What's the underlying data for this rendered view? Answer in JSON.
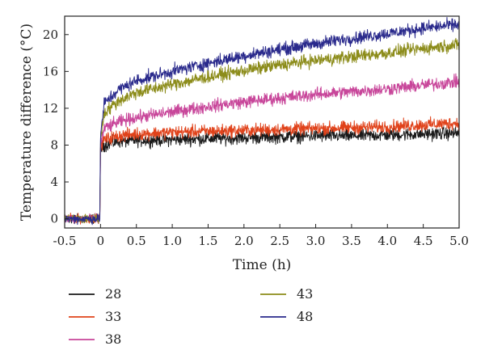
{
  "chart_data": {
    "type": "line",
    "title": "",
    "xlabel": "Time (h)",
    "ylabel": "Temperature difference (°C)",
    "xlim": [
      -0.5,
      5.0
    ],
    "ylim": [
      -1.0,
      22.0
    ],
    "x_ticks": [
      "-0.5",
      "0",
      "0.5",
      "1.0",
      "1.5",
      "2.0",
      "2.5",
      "3.0",
      "3.5",
      "4.0",
      "4.5",
      "5.0"
    ],
    "y_ticks": [
      "0",
      "4",
      "8",
      "12",
      "16",
      "20"
    ],
    "grid": false,
    "legend_position": "bottom",
    "noise": "high-frequency fluctuation of roughly ±0.6 °C around each trend",
    "series": [
      {
        "name": "28",
        "color": "#1a1a1a",
        "x": [
          -0.5,
          -0.01,
          0.0,
          0.05,
          0.25,
          0.5,
          1.0,
          1.5,
          2.0,
          2.5,
          3.0,
          3.5,
          4.0,
          4.5,
          5.0
        ],
        "y": [
          0.0,
          0.0,
          7.5,
          8.0,
          8.4,
          8.5,
          8.6,
          8.7,
          8.8,
          8.9,
          9.0,
          9.0,
          9.1,
          9.2,
          9.3
        ]
      },
      {
        "name": "33",
        "color": "#e0421a",
        "x": [
          -0.5,
          -0.01,
          0.0,
          0.05,
          0.25,
          0.5,
          1.0,
          1.5,
          2.0,
          2.5,
          3.0,
          3.5,
          4.0,
          4.5,
          5.0
        ],
        "y": [
          0.0,
          0.0,
          7.8,
          8.6,
          9.0,
          9.2,
          9.4,
          9.5,
          9.6,
          9.7,
          9.8,
          9.9,
          10.0,
          10.2,
          10.4
        ]
      },
      {
        "name": "38",
        "color": "#c8469a",
        "x": [
          -0.5,
          -0.01,
          0.0,
          0.05,
          0.25,
          0.5,
          1.0,
          1.5,
          2.0,
          2.5,
          3.0,
          3.5,
          4.0,
          4.5,
          5.0
        ],
        "y": [
          0.0,
          0.0,
          8.0,
          9.8,
          10.5,
          11.0,
          11.6,
          12.2,
          12.7,
          13.1,
          13.5,
          13.8,
          14.1,
          14.5,
          14.9
        ]
      },
      {
        "name": "43",
        "color": "#8c8c1a",
        "x": [
          -0.5,
          -0.01,
          0.0,
          0.05,
          0.25,
          0.5,
          1.0,
          1.5,
          2.0,
          2.5,
          3.0,
          3.5,
          4.0,
          4.5,
          5.0
        ],
        "y": [
          0.0,
          0.0,
          8.5,
          11.5,
          12.8,
          13.7,
          14.6,
          15.4,
          16.1,
          16.7,
          17.2,
          17.6,
          18.0,
          18.5,
          18.9
        ]
      },
      {
        "name": "48",
        "color": "#2a2a8c",
        "x": [
          -0.5,
          -0.01,
          0.0,
          0.05,
          0.25,
          0.5,
          1.0,
          1.5,
          2.0,
          2.5,
          3.0,
          3.5,
          4.0,
          4.5,
          5.0
        ],
        "y": [
          0.0,
          0.0,
          9.0,
          12.5,
          14.0,
          15.0,
          16.0,
          16.9,
          17.7,
          18.4,
          19.0,
          19.6,
          20.1,
          20.7,
          21.1
        ]
      }
    ]
  }
}
